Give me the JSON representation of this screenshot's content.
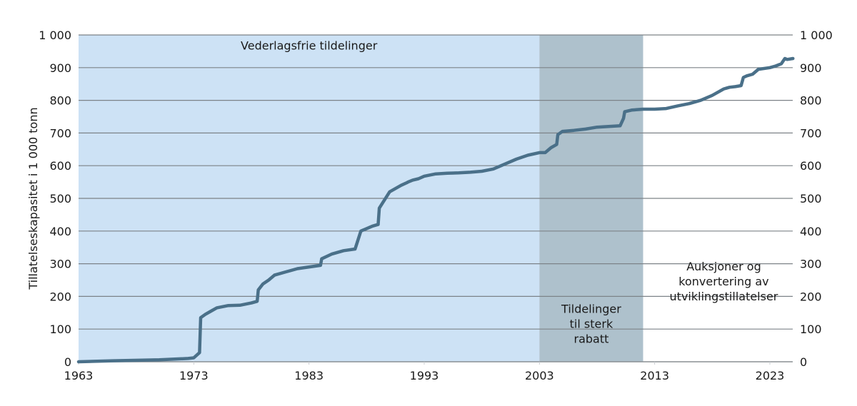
{
  "chart_data": {
    "type": "line",
    "title": "",
    "xlabel": "",
    "ylabel": "Tillatelseskapasitet i 1 000 tonn",
    "xlim": [
      1963,
      2025
    ],
    "ylim": [
      0,
      1000
    ],
    "x_ticks": [
      "1963",
      "1973",
      "1983",
      "1993",
      "2003",
      "2013",
      "2023"
    ],
    "y_ticks_left": [
      "0",
      "100",
      "200",
      "300",
      "400",
      "500",
      "600",
      "700",
      "800",
      "900",
      "1 000"
    ],
    "y_ticks_right": [
      "0",
      "100",
      "200",
      "300",
      "400",
      "500",
      "600",
      "700",
      "800",
      "900",
      "1 000"
    ],
    "grid": true,
    "legend": null,
    "regions": [
      {
        "label": "Vederlagsfrie tildelinger",
        "from": 1963,
        "to": 2003,
        "color": "#cde2f5"
      },
      {
        "label": "Tildelinger til sterk rabatt",
        "from": 2003,
        "to": 2012,
        "color": "#aec1cc"
      },
      {
        "label": "Auksjoner og konvertering av utviklingstillatelser",
        "from": 2012,
        "to": 2025,
        "color": "#ffffff"
      }
    ],
    "series": [
      {
        "name": "Tillatelseskapasitet",
        "color": "#4a7089",
        "x": [
          1963,
          1966,
          1970,
          1972.5,
          1973.0,
          1973.5,
          1973.6,
          1974.0,
          1974.5,
          1975,
          1976,
          1977,
          1978,
          1978.5,
          1978.6,
          1979,
          1979.5,
          1980,
          1981,
          1982,
          1984,
          1984.1,
          1985,
          1986,
          1987,
          1987.5,
          1988.5,
          1989,
          1989.1,
          1990,
          1991,
          1991.5,
          1991.6,
          1992,
          1992.5,
          1993,
          1994,
          1995,
          1996,
          1997,
          1998,
          1999,
          2000,
          2001,
          2002,
          2003,
          2003.5,
          2004,
          2004.5,
          2004.6,
          2005,
          2006,
          2007,
          2008,
          2009,
          2010,
          2010.3,
          2010.4,
          2011,
          2012,
          2013,
          2014,
          2015,
          2016,
          2017,
          2018,
          2019,
          2019.5,
          2020,
          2020.5,
          2020.7,
          2021,
          2021.5,
          2022,
          2023,
          2023.5,
          2024,
          2024.3,
          2024.5,
          2025
        ],
        "values": [
          0,
          3,
          6,
          10,
          12,
          28,
          135,
          145,
          155,
          165,
          172,
          173,
          180,
          185,
          220,
          238,
          250,
          265,
          275,
          285,
          295,
          315,
          330,
          340,
          345,
          400,
          415,
          420,
          470,
          520,
          540,
          548,
          550,
          556,
          560,
          568,
          575,
          577,
          578,
          580,
          583,
          590,
          605,
          620,
          632,
          640,
          640,
          655,
          665,
          695,
          705,
          708,
          712,
          718,
          720,
          722,
          745,
          765,
          770,
          773,
          773,
          775,
          783,
          790,
          800,
          815,
          835,
          840,
          842,
          845,
          870,
          875,
          880,
          895,
          900,
          905,
          912,
          928,
          925,
          928
        ]
      }
    ],
    "annotations": [
      {
        "text": "Vederlagsfrie tildelinger",
        "x": 1983,
        "y": 955
      },
      {
        "text": [
          "Tildelinger",
          "til sterk",
          "rabatt"
        ],
        "x": 2007.5,
        "y": 150
      },
      {
        "text": [
          "Auksjoner og",
          "konvertering av",
          "utviklingstillatelser"
        ],
        "x": 2019,
        "y": 280
      }
    ]
  }
}
